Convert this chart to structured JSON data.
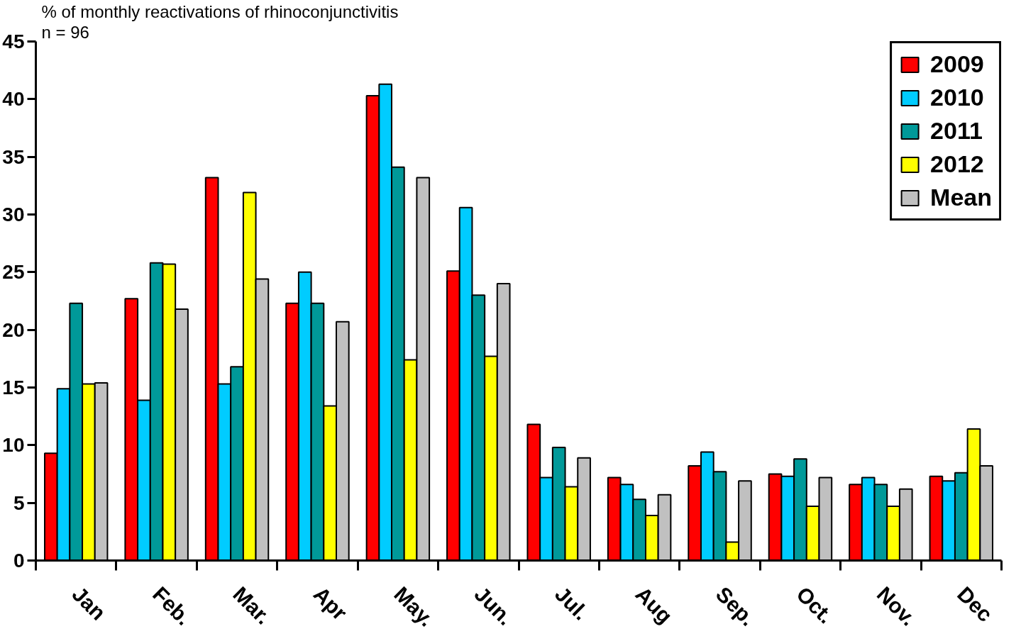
{
  "chart_data": {
    "type": "bar",
    "title": "% of monthly reactivations of rhinoconjunctivitis",
    "subtitle": "n = 96",
    "categories": [
      "Jan",
      "Feb.",
      "Mar.",
      "Apr",
      "May.",
      "Jun.",
      "Jul.",
      "Aug",
      "Sep.",
      "Oct.",
      "Nov.",
      "Dec"
    ],
    "series": [
      {
        "name": "2009",
        "color": "#ff0000",
        "values": [
          9.3,
          22.7,
          33.2,
          22.3,
          40.3,
          25.1,
          11.8,
          7.2,
          8.2,
          7.5,
          6.6,
          7.3
        ]
      },
      {
        "name": "2010",
        "color": "#00ccff",
        "values": [
          14.9,
          13.9,
          15.3,
          25.0,
          41.3,
          30.6,
          7.2,
          6.6,
          9.4,
          7.3,
          7.2,
          6.9
        ]
      },
      {
        "name": "2011",
        "color": "#009999",
        "values": [
          22.3,
          25.8,
          16.8,
          22.3,
          34.1,
          23.0,
          9.8,
          5.3,
          7.7,
          8.8,
          6.6,
          7.6
        ]
      },
      {
        "name": "2012",
        "color": "#ffff00",
        "values": [
          15.3,
          25.7,
          31.9,
          13.4,
          17.4,
          17.7,
          6.4,
          3.9,
          1.6,
          4.7,
          4.7,
          11.4
        ]
      },
      {
        "name": "Mean",
        "color": "#c0c0c0",
        "values": [
          15.4,
          21.8,
          24.4,
          20.7,
          33.2,
          24.0,
          8.9,
          5.7,
          6.9,
          7.2,
          6.2,
          8.2
        ]
      }
    ],
    "ylim": [
      0,
      45
    ],
    "yticks": [
      0,
      5,
      10,
      15,
      20,
      25,
      30,
      35,
      40,
      45
    ],
    "legend": "top right"
  }
}
